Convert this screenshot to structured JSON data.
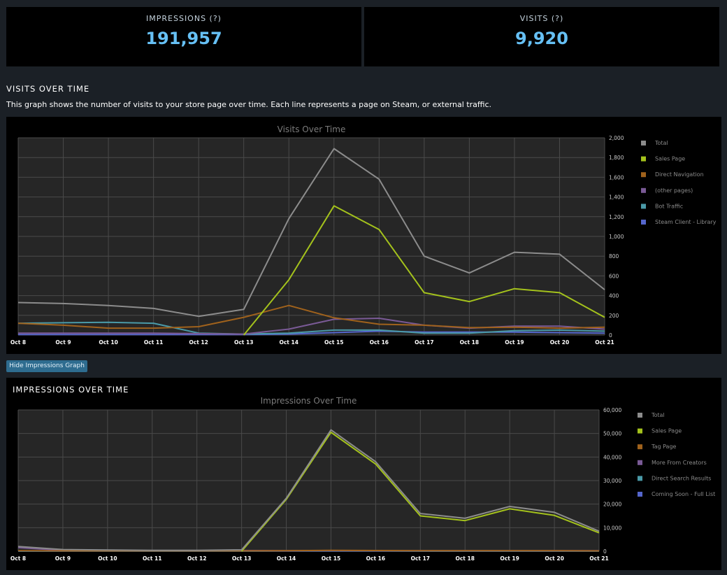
{
  "stats": {
    "impressions_label": "IMPRESSIONS (?)",
    "impressions_value": "191,957",
    "visits_label": "VISITS (?)",
    "visits_value": "9,920"
  },
  "visits_section": {
    "title": "VISITS OVER TIME",
    "description": "This graph shows the number of visits to your store page over time. Each line represents a page on Steam, or external traffic."
  },
  "hide_button_label": "Hide Impressions Graph",
  "impressions_section": {
    "title": "IMPRESSIONS OVER TIME"
  },
  "colors": {
    "accent": "#66c0f4",
    "page_bg": "#1b2026",
    "plot_bg": "#262626",
    "button": "#2e6c8f"
  },
  "chart_data": [
    {
      "type": "line",
      "title": "Visits Over Time",
      "categories": [
        "Oct 8",
        "Oct 9",
        "Oct 10",
        "Oct 11",
        "Oct 12",
        "Oct 13",
        "Oct 14",
        "Oct 15",
        "Oct 16",
        "Oct 17",
        "Oct 18",
        "Oct 19",
        "Oct 20",
        "Oct 21"
      ],
      "ylim": [
        0,
        2000
      ],
      "yticks": [
        0,
        200,
        400,
        600,
        800,
        1000,
        1200,
        1400,
        1600,
        1800,
        2000
      ],
      "ytick_labels": [
        "0",
        "200",
        "400",
        "600",
        "800",
        "1,000",
        "1,200",
        "1,400",
        "1,600",
        "1,800",
        "2,000"
      ],
      "grid": true,
      "legend_position": "right",
      "series": [
        {
          "name": "Total",
          "color": "#8c8c8c",
          "values": [
            330,
            320,
            300,
            270,
            190,
            260,
            1180,
            1890,
            1580,
            800,
            630,
            840,
            820,
            460
          ]
        },
        {
          "name": "Sales Page",
          "color": "#a4c21c",
          "values": [
            null,
            null,
            null,
            null,
            null,
            0,
            560,
            1310,
            1070,
            430,
            340,
            470,
            430,
            180
          ]
        },
        {
          "name": "Direct Navigation",
          "color": "#a0621c",
          "values": [
            120,
            100,
            70,
            70,
            85,
            180,
            300,
            175,
            110,
            100,
            75,
            80,
            70,
            80
          ]
        },
        {
          "name": "(other pages)",
          "color": "#7a5a96",
          "values": [
            20,
            20,
            20,
            20,
            15,
            10,
            60,
            160,
            170,
            100,
            70,
            90,
            90,
            60
          ]
        },
        {
          "name": "Bot Traffic",
          "color": "#4a9aa8",
          "values": [
            120,
            125,
            130,
            120,
            20,
            10,
            20,
            50,
            50,
            20,
            20,
            45,
            50,
            40
          ]
        },
        {
          "name": "Steam Client - Library",
          "color": "#5566cc",
          "values": [
            5,
            5,
            5,
            5,
            5,
            5,
            10,
            25,
            40,
            30,
            30,
            30,
            25,
            20
          ]
        }
      ]
    },
    {
      "type": "line",
      "title": "Impressions Over Time",
      "categories": [
        "Oct 8",
        "Oct 9",
        "Oct 10",
        "Oct 11",
        "Oct 12",
        "Oct 13",
        "Oct 14",
        "Oct 15",
        "Oct 16",
        "Oct 17",
        "Oct 18",
        "Oct 19",
        "Oct 20",
        "Oct 21"
      ],
      "ylim": [
        0,
        60000
      ],
      "yticks": [
        0,
        10000,
        20000,
        30000,
        40000,
        50000,
        60000
      ],
      "ytick_labels": [
        "0",
        "10,000",
        "20,000",
        "30,000",
        "40,000",
        "50,000",
        "60,000"
      ],
      "grid": true,
      "legend_position": "right",
      "series": [
        {
          "name": "Total",
          "color": "#8c8c8c",
          "values": [
            2000,
            700,
            500,
            400,
            400,
            600,
            22500,
            51500,
            38000,
            16000,
            14000,
            19000,
            16500,
            8500
          ]
        },
        {
          "name": "Sales Page",
          "color": "#a4c21c",
          "values": [
            null,
            null,
            null,
            null,
            null,
            0,
            22000,
            50500,
            37000,
            15000,
            13000,
            18000,
            15200,
            7800
          ]
        },
        {
          "name": "Tag Page",
          "color": "#a0621c",
          "values": [
            200,
            150,
            150,
            150,
            150,
            150,
            200,
            400,
            300,
            200,
            200,
            200,
            200,
            150
          ]
        },
        {
          "name": "More From Creators",
          "color": "#7a5a96",
          "values": [
            1500,
            400,
            300,
            200,
            200,
            300,
            200,
            300,
            200,
            200,
            200,
            200,
            200,
            200
          ]
        },
        {
          "name": "Direct Search Results",
          "color": "#4a9aa8",
          "values": [
            100,
            100,
            100,
            100,
            100,
            100,
            150,
            200,
            150,
            100,
            100,
            100,
            100,
            100
          ]
        },
        {
          "name": "Coming Soon - Full List",
          "color": "#5566cc",
          "values": [
            50,
            50,
            50,
            50,
            50,
            50,
            50,
            50,
            50,
            50,
            50,
            50,
            50,
            50
          ]
        }
      ]
    }
  ]
}
